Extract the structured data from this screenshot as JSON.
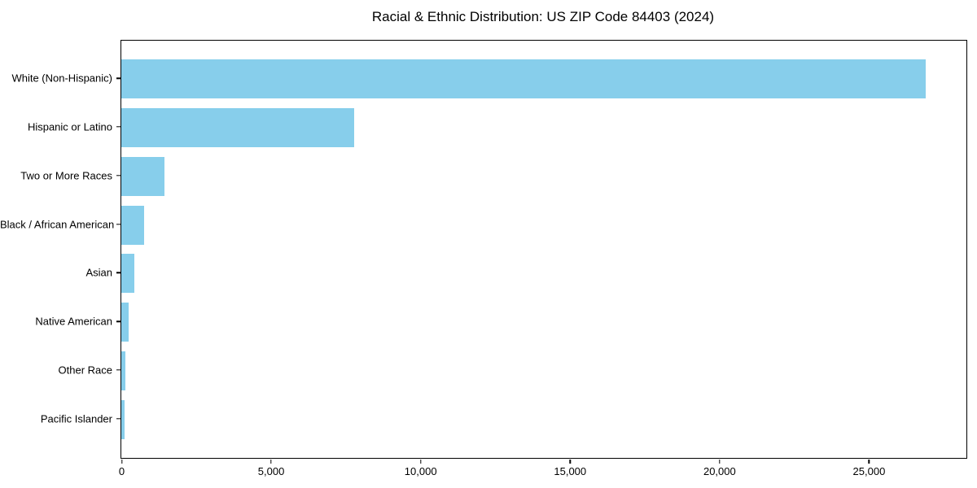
{
  "title": "Racial & Ethnic Distribution: US ZIP Code 84403 (2024)",
  "chart_data": {
    "type": "bar",
    "orientation": "horizontal",
    "title": "Racial & Ethnic Distribution: US ZIP Code 84403 (2024)",
    "categories": [
      "White (Non-Hispanic)",
      "Hispanic or Latino",
      "Two or More Races",
      "Black / African American",
      "Asian",
      "Native American",
      "Other Race",
      "Pacific Islander"
    ],
    "values": [
      26900,
      7800,
      1430,
      760,
      435,
      245,
      140,
      115
    ],
    "xlabel": "",
    "ylabel": "",
    "xlim": [
      0,
      28270
    ],
    "x_ticks": [
      0,
      5000,
      10000,
      15000,
      20000,
      25000
    ],
    "x_tick_labels": [
      "0",
      "5,000",
      "10,000",
      "15,000",
      "20,000",
      "25,000"
    ],
    "grid": false,
    "legend": null,
    "bar_color": "#87CEEB",
    "background_color": "#ffffff",
    "spine_color": "#000000",
    "text_color": "#000000"
  }
}
